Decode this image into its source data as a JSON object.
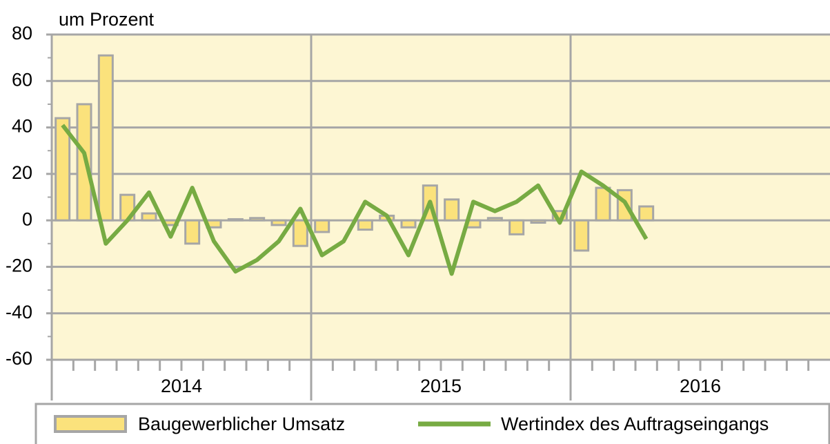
{
  "chart_data": {
    "type": "bar_line",
    "y_axis_label": "um Prozent",
    "categories": [
      null,
      null,
      null,
      null,
      null,
      null,
      null,
      null,
      null,
      null,
      null,
      null,
      null,
      null,
      null,
      null,
      null,
      null,
      null,
      null,
      null,
      null,
      null,
      null,
      null,
      null,
      null,
      null,
      null,
      null,
      null,
      null,
      null,
      null,
      null,
      null
    ],
    "x_groups": [
      "2014",
      "2015",
      "2016"
    ],
    "series": [
      {
        "name": "Baugewerblicher Umsatz",
        "type": "bar",
        "color": "#fbe27c",
        "edge_color": "#a6a6a6",
        "values": [
          44,
          50,
          71,
          11,
          3,
          -2,
          -10,
          -3,
          0.5,
          1,
          -2,
          -11,
          -5,
          0,
          -4,
          2,
          -3,
          15,
          9,
          -3,
          1,
          -6,
          -1,
          4,
          -13,
          14,
          13,
          6,
          null,
          null,
          null,
          null,
          null,
          null,
          null,
          null
        ]
      },
      {
        "name": "Wertindex des Auftragseingangs",
        "type": "line",
        "color": "#77ab43",
        "values": [
          41,
          29,
          -10,
          0,
          12,
          -7,
          14,
          -9,
          -22,
          -17,
          -9,
          5,
          -15,
          -9,
          8,
          2,
          -15,
          8,
          -23,
          8,
          4,
          8,
          15,
          -1,
          21,
          15,
          8,
          -8,
          null,
          null,
          null,
          null,
          null,
          null,
          null,
          null
        ]
      }
    ],
    "ylim": [
      -60,
      80
    ],
    "yticks": [
      -60,
      -40,
      -20,
      0,
      20,
      40,
      60,
      80
    ],
    "grid": true,
    "plot_background": "#fdf6d3",
    "legend": "bottom"
  }
}
